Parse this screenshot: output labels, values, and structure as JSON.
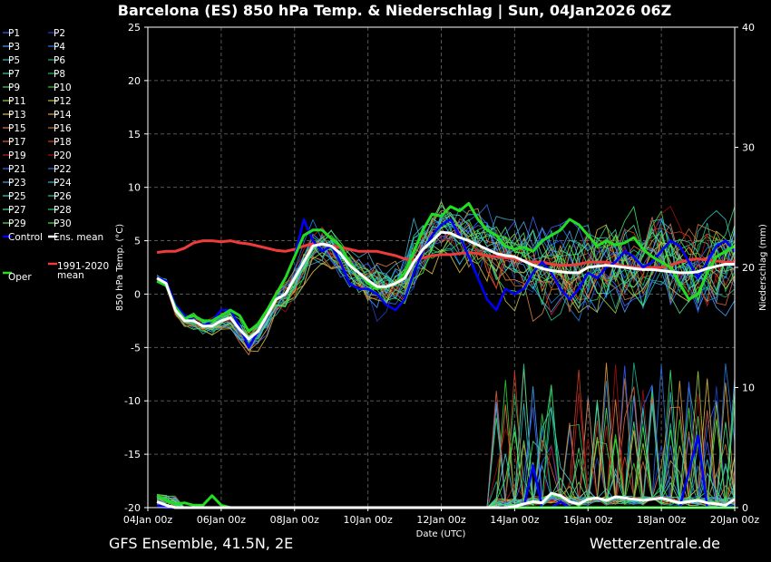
{
  "title": "Barcelona  (ES)  850 hPa Temp. & Niederschlag | Sun, 04Jan2026 06Z",
  "footer_left": "GFS Ensemble, 41.5N, 2E",
  "footer_right": "Wetterzentrale.de",
  "chart_data": {
    "type": "line",
    "xlabel": "Date (UTC)",
    "ylabel_left": "850 hPa Temp. (°C)",
    "ylabel_right": "Niederschlag (mm)",
    "ylim_left": [
      -20,
      25
    ],
    "ylim_right": [
      0,
      40
    ],
    "yticks_left": [
      25,
      20,
      15,
      10,
      5,
      0,
      -5,
      -10,
      -15,
      -20
    ],
    "yticks_right": [
      40,
      30,
      20,
      10,
      0
    ],
    "xticks": [
      "04Jan 00z",
      "06Jan 00z",
      "08Jan 00z",
      "10Jan 00z",
      "12Jan 00z",
      "14Jan 00z",
      "16Jan 00z",
      "18Jan 00z",
      "20Jan 00z"
    ],
    "x_hours": [
      6,
      12,
      18,
      24,
      30,
      36,
      42,
      48,
      54,
      60,
      66,
      72,
      78,
      84,
      90,
      96,
      102,
      108,
      114,
      120,
      126,
      132,
      138,
      144,
      150,
      156,
      162,
      168,
      174,
      180,
      186,
      192,
      198,
      204,
      210,
      216,
      222,
      228,
      234,
      240,
      246,
      252,
      258,
      264,
      270,
      276,
      282,
      288,
      294,
      300,
      306,
      312,
      318,
      324,
      330,
      336,
      342,
      348,
      354,
      360,
      366,
      372,
      378,
      384
    ],
    "grid": true,
    "legend_position": "left",
    "series": [
      {
        "name": "Ens. mean",
        "color": "#ffffff",
        "width": 3,
        "temp": [
          1.5,
          1.0,
          -1.5,
          -2.5,
          -2.5,
          -3.0,
          -3.0,
          -2.5,
          -2.2,
          -3.3,
          -4.2,
          -3.5,
          -2.0,
          -0.5,
          0.0,
          1.5,
          3.0,
          4.5,
          4.7,
          4.5,
          3.8,
          2.7,
          2.0,
          1.3,
          0.7,
          0.7,
          1.0,
          1.5,
          3.0,
          4.2,
          5.0,
          5.8,
          5.7,
          5.3,
          5.0,
          4.6,
          4.2,
          3.8,
          3.6,
          3.5,
          3.1,
          2.7,
          2.4,
          2.2,
          2.1,
          2.0,
          2.0,
          2.5,
          2.6,
          2.7,
          2.6,
          2.5,
          2.4,
          2.3,
          2.3,
          2.2,
          2.1,
          2.0,
          2.0,
          2.1,
          2.4,
          2.6,
          2.8,
          2.8
        ],
        "precip": [
          0.5,
          0.2,
          0,
          0,
          0,
          0,
          0,
          0,
          0,
          0,
          0,
          0,
          0,
          0,
          0,
          0,
          0,
          0,
          0,
          0,
          0,
          0,
          0,
          0,
          0,
          0,
          0,
          0,
          0,
          0,
          0,
          0,
          0,
          0,
          0,
          0,
          0,
          0,
          0,
          0.1,
          0.3,
          0.5,
          0.4,
          1.2,
          1.0,
          0.5,
          0.3,
          0.7,
          0.8,
          0.6,
          0.9,
          0.8,
          0.7,
          0.6,
          0.7,
          0.8,
          0.6,
          0.4,
          0.5,
          0.6,
          0.4,
          0.3,
          0.2,
          0.7
        ]
      },
      {
        "name": "Oper",
        "color": "#22dd22",
        "width": 3,
        "temp": [
          1.2,
          0.8,
          -1.2,
          -2.3,
          -2.0,
          -2.5,
          -2.5,
          -2.0,
          -1.5,
          -2.0,
          -3.5,
          -2.8,
          -1.5,
          0.0,
          1.5,
          3.5,
          5.5,
          6.0,
          6.0,
          5.2,
          4.5,
          3.0,
          2.0,
          1.0,
          0.5,
          0.7,
          1.0,
          2.0,
          4.0,
          6.0,
          7.5,
          7.3,
          8.2,
          7.8,
          8.5,
          7.0,
          6.0,
          5.5,
          4.5,
          4.2,
          4.4,
          4.0,
          5.0,
          5.5,
          6.0,
          7.0,
          6.5,
          5.5,
          4.5,
          5.0,
          4.6,
          4.8,
          5.3,
          4.2,
          3.5,
          3.0,
          2.5,
          1.0,
          -0.5,
          0.0,
          2.0,
          3.5,
          4.0,
          4.5
        ],
        "precip": [
          1.0,
          0.6,
          0.3,
          0.4,
          0.2,
          0.2,
          1.0,
          0.2,
          0,
          0,
          0,
          0,
          0,
          0,
          0,
          0,
          0,
          0,
          0,
          0,
          0,
          0,
          0,
          0,
          0,
          0,
          0,
          0,
          0,
          0,
          0,
          0,
          0,
          0,
          0,
          0,
          0,
          0,
          0,
          0,
          0,
          0,
          0,
          0,
          0,
          0,
          0,
          0,
          0,
          0,
          0,
          0,
          0,
          0,
          0,
          0,
          0,
          0,
          0,
          0,
          0,
          0,
          0,
          0
        ]
      },
      {
        "name": "Control",
        "color": "#0000ff",
        "width": 2.5,
        "temp": [
          1.6,
          1.2,
          -1.0,
          -2.0,
          -2.5,
          -3.0,
          -2.5,
          -1.5,
          -1.5,
          -3.0,
          -5.0,
          -3.5,
          -2.0,
          0.0,
          1.5,
          3.5,
          7.0,
          5.0,
          4.0,
          4.5,
          3.0,
          1.0,
          0.5,
          0.5,
          0.0,
          -1.0,
          -1.5,
          -0.5,
          2.0,
          4.0,
          5.5,
          6.5,
          7.0,
          5.5,
          3.5,
          1.5,
          -0.5,
          -1.5,
          0.5,
          0.0,
          0.5,
          2.0,
          3.0,
          2.0,
          0.5,
          -0.5,
          0.5,
          2.0,
          1.5,
          2.5,
          3.0,
          4.0,
          3.5,
          2.5,
          3.0,
          4.0,
          5.0,
          4.5,
          3.0,
          1.5,
          3.0,
          4.5,
          5.0,
          4.0
        ],
        "precip": [
          0.2,
          0,
          0,
          0,
          0,
          0,
          0,
          0,
          0,
          0,
          0,
          0,
          0,
          0,
          0,
          0,
          0,
          0,
          0,
          0,
          0,
          0,
          0,
          0,
          0,
          0,
          0,
          0,
          0,
          0,
          0,
          0,
          0,
          0,
          0,
          0,
          0,
          0,
          0,
          0,
          0,
          3.5,
          0,
          0,
          0.5,
          0,
          0,
          0,
          0,
          0,
          0,
          0,
          0,
          0,
          0,
          0,
          0,
          0,
          3,
          6,
          0,
          0,
          0.2,
          0
        ]
      },
      {
        "name": "1991-2020 mean",
        "color": "#ee3b3b",
        "width": 3,
        "temp": [
          3.9,
          4.0,
          4.0,
          4.3,
          4.8,
          5.0,
          5.0,
          4.9,
          5.0,
          4.8,
          4.7,
          4.5,
          4.3,
          4.1,
          4.0,
          4.2,
          4.5,
          4.7,
          4.7,
          4.5,
          4.4,
          4.2,
          4.0,
          4.0,
          4.0,
          3.8,
          3.6,
          3.3,
          3.2,
          3.4,
          3.6,
          3.7,
          3.7,
          3.8,
          3.9,
          3.8,
          3.6,
          3.5,
          3.4,
          3.3,
          3.1,
          3.0,
          3.0,
          2.8,
          2.7,
          2.7,
          2.8,
          3.0,
          3.0,
          3.0,
          2.8,
          2.6,
          2.5,
          2.5,
          2.5,
          2.5,
          2.7,
          3.0,
          3.2,
          3.3,
          3.2,
          3.1,
          3.0,
          3.0
        ],
        "precip": []
      }
    ],
    "members": [
      "P1",
      "P2",
      "P3",
      "P4",
      "P5",
      "P6",
      "P7",
      "P8",
      "P9",
      "P10",
      "P11",
      "P12",
      "P13",
      "P14",
      "P15",
      "P16",
      "P17",
      "P18",
      "P19",
      "P20",
      "P21",
      "P22",
      "P23",
      "P24",
      "P25",
      "P26",
      "P27",
      "P28",
      "P29",
      "P30"
    ],
    "member_colors": [
      "#3060ff",
      "#2040cc",
      "#40a0ff",
      "#2080e0",
      "#30c0c0",
      "#20b090",
      "#40d0a0",
      "#20c060",
      "#40e060",
      "#30d030",
      "#a0d040",
      "#c0c040",
      "#e0c040",
      "#e0a040",
      "#e08040",
      "#c07030",
      "#e06040",
      "#d04020",
      "#c02020",
      "#a01010",
      "#4060ff",
      "#3070e0",
      "#50a0e0",
      "#40b0d0",
      "#40d0d0",
      "#30c0a0",
      "#50e090",
      "#30d070",
      "#60e060",
      "#40f040"
    ],
    "member_spread": [
      0.4,
      0.5,
      0.6,
      0.7,
      0.8,
      0.8,
      0.9,
      1.0,
      1.0,
      1.1,
      1.2,
      1.4,
      1.6,
      1.8,
      2.0,
      2.2,
      2.2,
      2.1,
      2.0,
      2.0,
      2.1,
      2.3,
      2.4,
      2.5,
      2.6,
      2.8,
      3.0,
      3.1,
      3.2,
      3.2,
      3.2,
      3.3,
      3.3,
      3.4,
      3.5,
      3.6,
      3.7,
      3.8,
      3.9,
      4.0,
      4.1,
      4.2,
      4.3,
      4.4,
      4.4,
      4.5,
      4.6,
      4.6,
      4.6,
      4.7,
      4.7,
      4.8,
      4.8,
      4.8,
      4.9,
      4.9,
      5.0,
      5.0,
      5.0,
      5.0,
      5.1,
      5.1,
      5.2,
      5.2
    ],
    "legend": [
      [
        "P1",
        "P2"
      ],
      [
        "P3",
        "P4"
      ],
      [
        "P5",
        "P6"
      ],
      [
        "P7",
        "P8"
      ],
      [
        "P9",
        "P10"
      ],
      [
        "P11",
        "P12"
      ],
      [
        "P13",
        "P14"
      ],
      [
        "P15",
        "P16"
      ],
      [
        "P17",
        "P18"
      ],
      [
        "P19",
        "P20"
      ],
      [
        "P21",
        "P22"
      ],
      [
        "P23",
        "P24"
      ],
      [
        "P25",
        "P26"
      ],
      [
        "P27",
        "P28"
      ],
      [
        "P29",
        "P30"
      ],
      [
        "Control",
        "Ens. mean"
      ]
    ],
    "legend_extra": [
      {
        "label": "Oper",
        "color": "#22dd22"
      },
      {
        "label": "1991-2020",
        "label2": "mean",
        "color": "#ee3b3b"
      }
    ]
  }
}
